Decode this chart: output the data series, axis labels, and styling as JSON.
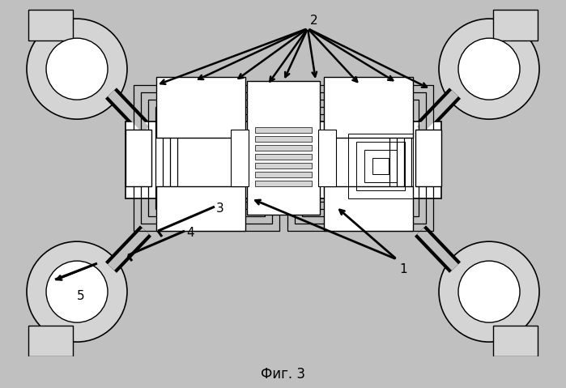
{
  "bg_color": "#c0c0c0",
  "white": "#ffffff",
  "black": "#000000",
  "light_gray": "#d4d4d4",
  "mid_gray": "#b0b0b0",
  "fig_width": 6.99,
  "fig_height": 4.79,
  "title": "Фиг. 3",
  "title_fontsize": 12
}
